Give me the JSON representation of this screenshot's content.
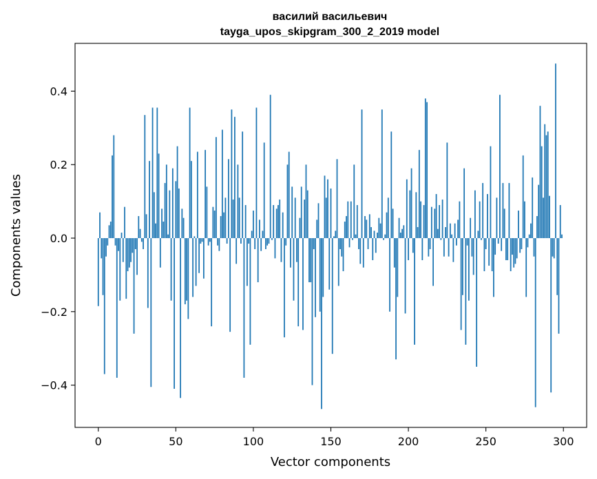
{
  "chart_data": {
    "type": "bar",
    "title": "василий васильевич",
    "subtitle": "tayga_upos_skipgram_300_2_2019 model",
    "xlabel": "Vector components",
    "ylabel": "Components values",
    "xlim": [
      -15,
      315
    ],
    "ylim": [
      -0.515,
      0.53
    ],
    "x_ticks": [
      0,
      50,
      100,
      150,
      200,
      250,
      300
    ],
    "x_tick_labels": [
      "0",
      "50",
      "100",
      "150",
      "200",
      "250",
      "300"
    ],
    "y_ticks": [
      -0.4,
      -0.2,
      0.0,
      0.2,
      0.4
    ],
    "y_tick_labels": [
      "−0.4",
      "−0.2",
      "0.0",
      "0.2",
      "0.4"
    ],
    "bar_color": "#1f77b4",
    "grid": false,
    "values": [
      -0.185,
      0.07,
      -0.055,
      -0.155,
      -0.37,
      -0.05,
      -0.02,
      0.035,
      0.045,
      0.225,
      0.28,
      -0.02,
      -0.38,
      -0.035,
      -0.17,
      0.015,
      -0.065,
      0.085,
      -0.165,
      -0.09,
      -0.08,
      -0.065,
      -0.04,
      -0.26,
      -0.03,
      -0.1,
      0.06,
      0.025,
      -0.01,
      -0.03,
      0.335,
      0.065,
      -0.19,
      0.21,
      -0.405,
      0.355,
      0.125,
      0.04,
      0.355,
      0.23,
      -0.08,
      0.08,
      0.045,
      0.15,
      0.2,
      0.01,
      0.13,
      -0.17,
      0.19,
      -0.41,
      0.155,
      0.25,
      0.135,
      -0.435,
      0.08,
      0.055,
      -0.18,
      -0.17,
      -0.22,
      0.355,
      0.21,
      -0.16,
      0.005,
      -0.13,
      0.235,
      -0.095,
      -0.015,
      -0.01,
      -0.11,
      0.24,
      0.14,
      -0.02,
      -0.01,
      -0.24,
      0.085,
      0.075,
      0.275,
      -0.02,
      -0.035,
      0.06,
      0.295,
      0.07,
      0.11,
      -0.015,
      0.215,
      -0.255,
      0.35,
      0.105,
      0.33,
      -0.07,
      0.2,
      0.11,
      -0.015,
      0.29,
      -0.38,
      0.09,
      -0.13,
      -0.015,
      -0.29,
      0.02,
      0.075,
      -0.03,
      0.355,
      -0.12,
      0.05,
      -0.035,
      0.02,
      0.26,
      -0.03,
      -0.02,
      -0.015,
      0.39,
      -0.005,
      0.09,
      -0.055,
      0.08,
      0.09,
      0.105,
      -0.065,
      0.07,
      -0.27,
      -0.02,
      0.2,
      0.235,
      -0.08,
      0.14,
      -0.17,
      0.11,
      -0.065,
      -0.24,
      0.055,
      0.14,
      -0.25,
      0.105,
      0.2,
      0.13,
      -0.12,
      -0.12,
      -0.4,
      -0.03,
      -0.215,
      0.05,
      0.095,
      -0.2,
      -0.465,
      -0.16,
      0.17,
      0.11,
      0.16,
      -0.14,
      0.135,
      -0.315,
      0.005,
      0.02,
      0.215,
      -0.13,
      -0.03,
      -0.05,
      -0.09,
      0.045,
      0.06,
      0.1,
      -0.025,
      0.1,
      -0.005,
      0.2,
      0.01,
      0.09,
      -0.03,
      -0.07,
      0.35,
      -0.08,
      0.06,
      0.05,
      -0.03,
      0.065,
      0.03,
      -0.06,
      0.02,
      -0.04,
      0.015,
      0.055,
      0.04,
      0.35,
      -0.005,
      0.01,
      0.07,
      0.11,
      -0.2,
      0.29,
      0.08,
      -0.08,
      -0.33,
      -0.16,
      0.055,
      0.015,
      0.025,
      0.035,
      -0.205,
      0.16,
      -0.06,
      0.13,
      0.19,
      -0.04,
      -0.29,
      0.125,
      0.03,
      0.24,
      0.1,
      -0.06,
      0.09,
      0.38,
      0.37,
      -0.05,
      -0.03,
      0.085,
      -0.13,
      0.08,
      0.12,
      0.025,
      0.09,
      -0.005,
      0.105,
      -0.05,
      0.03,
      0.26,
      -0.05,
      0.04,
      0.01,
      -0.065,
      0.04,
      -0.02,
      0.05,
      0.1,
      -0.25,
      -0.155,
      0.19,
      -0.29,
      -0.02,
      -0.17,
      0.055,
      -0.05,
      -0.1,
      0.13,
      -0.35,
      0.02,
      0.1,
      -0.005,
      0.15,
      -0.09,
      -0.03,
      0.12,
      -0.075,
      0.25,
      -0.09,
      -0.16,
      -0.045,
      0.11,
      -0.015,
      0.39,
      -0.035,
      0.15,
      0.08,
      -0.06,
      -0.06,
      0.15,
      -0.09,
      -0.045,
      -0.08,
      -0.07,
      -0.055,
      0.075,
      -0.04,
      -0.03,
      0.225,
      0.1,
      -0.16,
      -0.025,
      0.01,
      0.04,
      0.165,
      -0.05,
      -0.46,
      0.06,
      0.145,
      0.36,
      0.25,
      0.11,
      0.31,
      0.28,
      0.29,
      0.115,
      -0.42,
      -0.05,
      -0.055,
      0.475,
      -0.155,
      -0.26,
      0.09,
      0.01
    ]
  }
}
